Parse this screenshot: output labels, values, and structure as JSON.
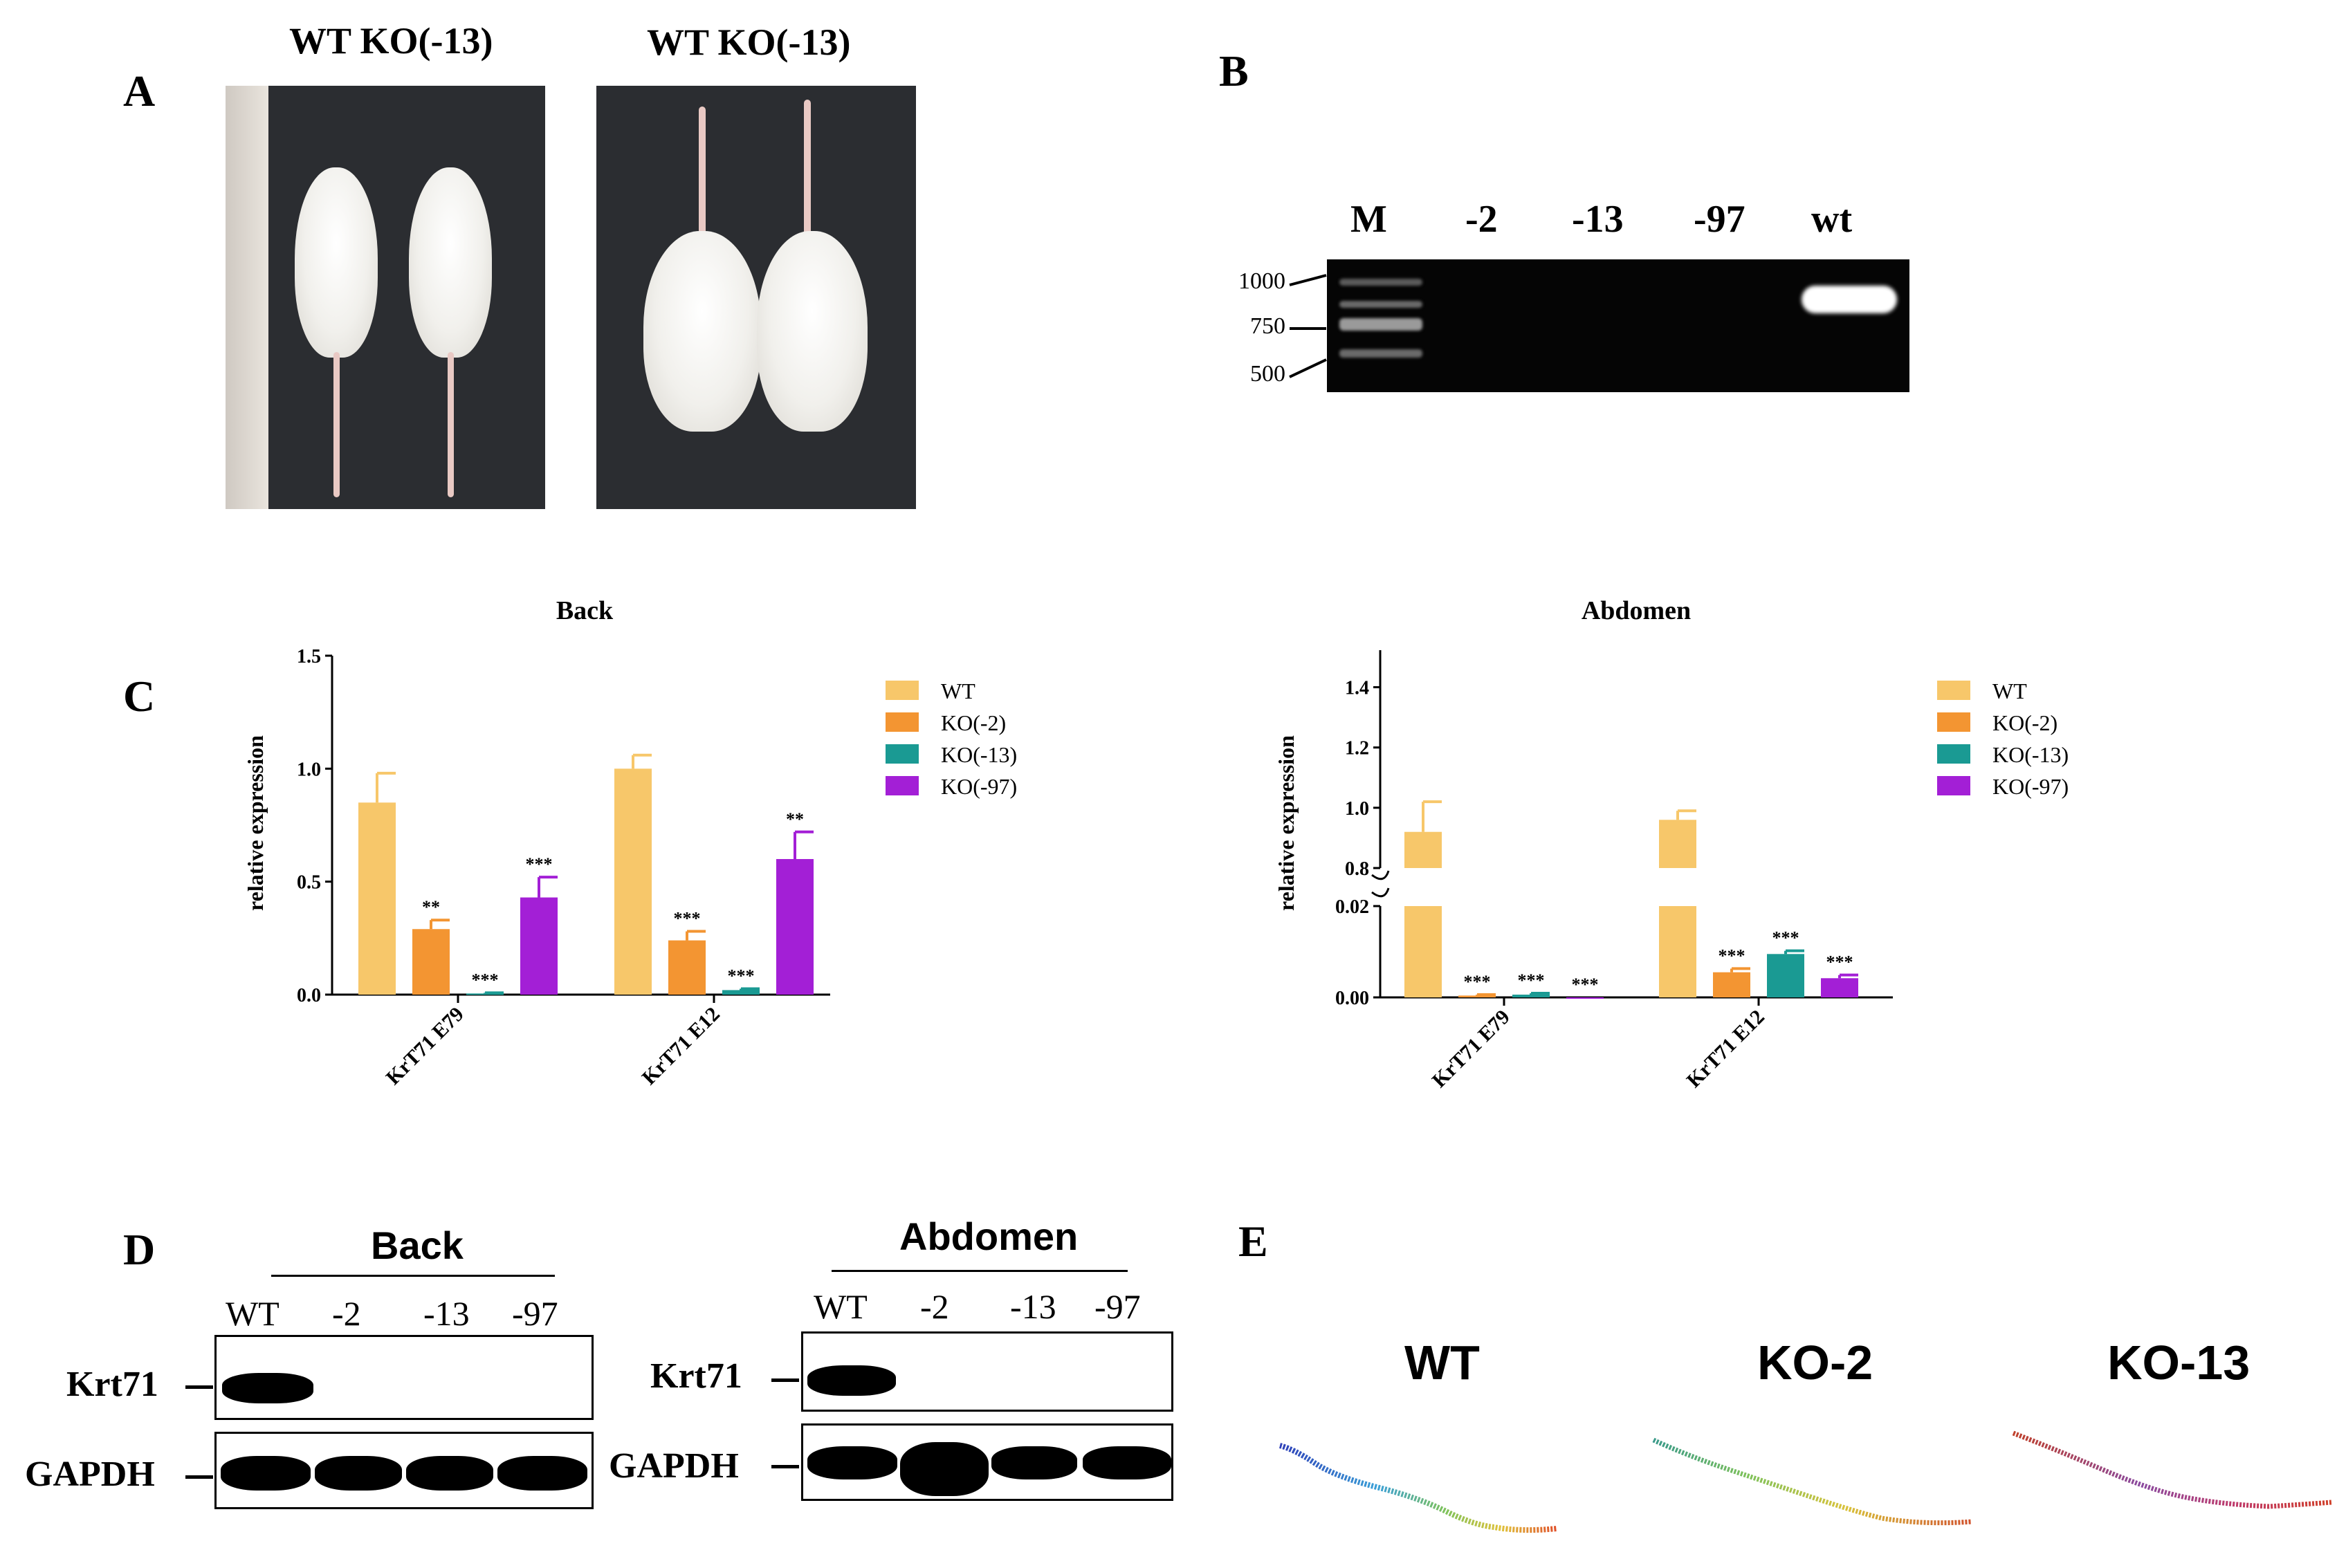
{
  "panels": {
    "A": "A",
    "B": "B",
    "C": "C",
    "D": "D",
    "E": "E"
  },
  "panel_a": {
    "left_labels": "WT   KO(-13)",
    "right_labels": "WT   KO(-13)"
  },
  "panel_b": {
    "lanes": [
      "M",
      "-2",
      "-13",
      "-97",
      "wt"
    ],
    "ladder": [
      "1000",
      "750",
      "500"
    ]
  },
  "chart_data": [
    {
      "type": "bar",
      "title": "Back",
      "ylabel": "relative expression",
      "ylim": [
        0,
        1.5
      ],
      "yticks": [
        "0.0",
        "0.5",
        "1.0",
        "1.5"
      ],
      "categories": [
        "KrT71 E79",
        "KrT71 E12"
      ],
      "series": [
        {
          "name": "WT",
          "color": "#f7c76a",
          "values": [
            0.85,
            1.0
          ],
          "errors": [
            0.13,
            0.06
          ],
          "sig": [
            "",
            ""
          ]
        },
        {
          "name": "KO(-2)",
          "color": "#f39532",
          "values": [
            0.29,
            0.24
          ],
          "errors": [
            0.04,
            0.04
          ],
          "sig": [
            "**",
            "***"
          ]
        },
        {
          "name": "KO(-13)",
          "color": "#1a9a93",
          "values": [
            0.005,
            0.02
          ],
          "errors": [
            0.003,
            0.006
          ],
          "sig": [
            "***",
            "***"
          ]
        },
        {
          "name": "KO(-97)",
          "color": "#a31fd6",
          "values": [
            0.43,
            0.6
          ],
          "errors": [
            0.09,
            0.12
          ],
          "sig": [
            "***",
            "**"
          ]
        }
      ],
      "legend": "right"
    },
    {
      "type": "bar",
      "title": "Abdomen",
      "ylabel": "relative expression",
      "broken_axis": true,
      "ylim_lower": [
        0,
        0.02
      ],
      "ylim_upper": [
        0.8,
        1.5
      ],
      "yticks_lower": [
        "0.00",
        "0.02"
      ],
      "yticks_upper": [
        "0.8",
        "1.0",
        "1.2",
        "1.4"
      ],
      "categories": [
        "KrT71 E79",
        "KrT71 E12"
      ],
      "series": [
        {
          "name": "WT",
          "color": "#f7c76a",
          "values": [
            0.92,
            0.96
          ],
          "errors": [
            0.1,
            0.03
          ],
          "sig": [
            "",
            ""
          ]
        },
        {
          "name": "KO(-2)",
          "color": "#f39532",
          "values": [
            0.0004,
            0.0055
          ],
          "errors": [
            0.0002,
            0.0008
          ],
          "sig": [
            "***",
            "***"
          ]
        },
        {
          "name": "KO(-13)",
          "color": "#1a9a93",
          "values": [
            0.0006,
            0.0095
          ],
          "errors": [
            0.0003,
            0.0007
          ],
          "sig": [
            "***",
            "***"
          ]
        },
        {
          "name": "KO(-97)",
          "color": "#a31fd6",
          "values": [
            0.0,
            0.0042
          ],
          "errors": [
            0.0,
            0.0007
          ],
          "sig": [
            "***",
            "***"
          ]
        }
      ],
      "legend": "right"
    }
  ],
  "panel_d": {
    "back_title": "Back",
    "abdomen_title": "Abdomen",
    "back_lanes": [
      "WT",
      "-2",
      "-13",
      "-97"
    ],
    "abdomen_lanes": [
      "WT",
      "-2",
      "-13",
      "-97"
    ],
    "row1": "Krt71",
    "row2": "GAPDH"
  },
  "panel_e": {
    "titles": [
      "WT",
      "KO-2",
      "KO-13"
    ]
  }
}
